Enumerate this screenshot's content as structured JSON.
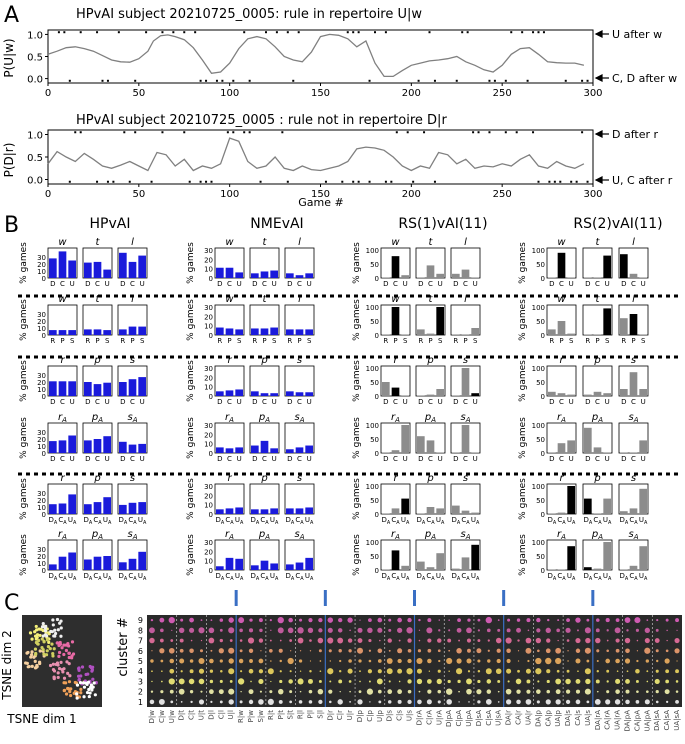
{
  "panel_labels": [
    "A",
    "B",
    "C"
  ],
  "colors": {
    "hp_bar": "#1a1adb",
    "rs_gray": "#8c8c8c",
    "rs_black": "#000000",
    "line": "#808080",
    "tsne_bg": "#2e2e2e",
    "grid_bg": "#2a2a2a",
    "blue_marker": "#3a6fc4"
  },
  "panelA": {
    "top": {
      "title": "HPvAI subject 20210725_0005:  rule in repertoire  U|w",
      "ylabel": "P(U|w)",
      "right_top": "U after w",
      "right_bottom": "C, D after w",
      "yticks": [
        "0.0",
        "0.5",
        "1.0"
      ]
    },
    "bottom": {
      "title": "HPvAI subject 20210725_0005 :  rule not in repertoire  D|r",
      "ylabel": "P(D|r)",
      "right_top": "D after r",
      "right_bottom": "U, C after r",
      "yticks": [
        "0.0",
        "0.5",
        "1.0"
      ]
    },
    "xticks": [
      "0",
      "50",
      "100",
      "150",
      "200",
      "250",
      "300"
    ],
    "xlabel": "Game #"
  },
  "panelB": {
    "column_titles": [
      "HPvAI",
      "NMEvAI",
      "RS(1)vAI(11)",
      "RS(2)vAI(11)"
    ],
    "ylabel": "% games",
    "cond_sets": [
      [
        "w",
        "t",
        "l"
      ],
      [
        "w",
        "t",
        "l"
      ],
      [
        "r",
        "p",
        "s"
      ],
      [
        "rA",
        "pA",
        "sA"
      ],
      [
        "r",
        "p",
        "s"
      ],
      [
        "rA",
        "pA",
        "sA"
      ]
    ],
    "xcat_sets": [
      [
        "D",
        "C",
        "U"
      ],
      [
        "R",
        "P",
        "S"
      ],
      [
        "D",
        "C",
        "U"
      ],
      [
        "D",
        "C",
        "U"
      ],
      [
        "DA",
        "CA",
        "UA"
      ],
      [
        "DA",
        "CA",
        "UA"
      ]
    ],
    "yticks_hp": [
      "0",
      "10",
      "20",
      "30"
    ],
    "yticks_rs": [
      "0",
      "50",
      "100"
    ]
  },
  "panelC": {
    "tsne_xlabel": "TSNE dim 1",
    "tsne_ylabel": "TSNE dim 2",
    "cluster_ylabel": "cluster #",
    "cluster_ticks": [
      "1",
      "2",
      "3",
      "4",
      "5",
      "6",
      "7",
      "8",
      "9"
    ],
    "feature_labels": [
      "D|w",
      "C|w",
      "U|w",
      "D|t",
      "C|t",
      "U|t",
      "D|l",
      "C|l",
      "U|l",
      "R|w",
      "P|w",
      "S|w",
      "R|t",
      "P|t",
      "S|t",
      "R|l",
      "P|l",
      "S|l",
      "D|r",
      "C|r",
      "U|r",
      "D|p",
      "C|p",
      "U|p",
      "D|s",
      "C|s",
      "U|s",
      "D|rA",
      "C|rA",
      "U|rA",
      "D|pA",
      "C|pA",
      "U|pA",
      "D|sA",
      "C|sA",
      "U|sA",
      "DA|r",
      "CA|r",
      "UA|r",
      "DA|p",
      "CA|p",
      "UA|p",
      "DA|s",
      "CA|s",
      "UA|s",
      "DA|rA",
      "CA|rA",
      "UA|rA",
      "DA|pA",
      "CA|pA",
      "UA|pA",
      "DA|sA",
      "CA|sA",
      "UA|sA"
    ]
  },
  "chart_data": [
    {
      "type": "line",
      "title": "HPvAI subject 20210725_0005:  rule in repertoire  U|w",
      "xlabel": "",
      "ylabel": "P(U|w)",
      "xlim": [
        0,
        300
      ],
      "ylim": [
        -0.1,
        1.1
      ],
      "x": [
        0,
        5,
        10,
        15,
        20,
        25,
        30,
        35,
        40,
        45,
        50,
        55,
        58,
        62,
        66,
        70,
        75,
        80,
        85,
        90,
        95,
        100,
        105,
        110,
        115,
        120,
        125,
        130,
        135,
        140,
        145,
        150,
        155,
        160,
        165,
        170,
        175,
        180,
        185,
        190,
        195,
        200,
        205,
        210,
        215,
        220,
        225,
        230,
        235,
        240,
        245,
        250,
        255,
        260,
        265,
        270,
        275,
        280,
        285,
        290,
        295
      ],
      "series": [
        {
          "values": [
            0.55,
            0.62,
            0.7,
            0.72,
            0.68,
            0.62,
            0.52,
            0.42,
            0.38,
            0.37,
            0.45,
            0.62,
            0.85,
            0.97,
            0.99,
            0.95,
            0.88,
            0.7,
            0.42,
            0.12,
            0.15,
            0.35,
            0.68,
            0.9,
            0.95,
            0.9,
            0.72,
            0.5,
            0.42,
            0.38,
            0.6,
            0.95,
            1.0,
            0.98,
            0.9,
            0.72,
            0.85,
            0.35,
            0.05,
            0.05,
            0.18,
            0.3,
            0.35,
            0.4,
            0.42,
            0.45,
            0.5,
            0.38,
            0.3,
            0.2,
            0.15,
            0.3,
            0.55,
            0.68,
            0.7,
            0.55,
            0.38,
            0.36,
            0.35,
            0.35,
            0.3
          ]
        }
      ]
    },
    {
      "type": "line",
      "title": "HPvAI subject 20210725_0005 :  rule not in repertoire  D|r",
      "xlabel": "Game #",
      "ylabel": "P(D|r)",
      "xlim": [
        0,
        300
      ],
      "ylim": [
        -0.1,
        1.1
      ],
      "x": [
        0,
        5,
        10,
        15,
        20,
        25,
        30,
        35,
        40,
        45,
        50,
        55,
        60,
        65,
        70,
        75,
        80,
        85,
        90,
        95,
        100,
        105,
        110,
        115,
        120,
        125,
        130,
        135,
        140,
        145,
        150,
        155,
        160,
        165,
        170,
        175,
        180,
        185,
        190,
        195,
        200,
        205,
        210,
        215,
        220,
        225,
        230,
        235,
        240,
        245,
        250,
        255,
        260,
        265,
        270,
        275,
        280,
        285,
        290,
        295
      ],
      "series": [
        {
          "values": [
            0.35,
            0.62,
            0.5,
            0.4,
            0.58,
            0.45,
            0.3,
            0.25,
            0.32,
            0.4,
            0.3,
            0.2,
            0.6,
            0.55,
            0.3,
            0.45,
            0.2,
            0.3,
            0.25,
            0.35,
            0.92,
            0.85,
            0.4,
            0.25,
            0.3,
            0.5,
            0.25,
            0.2,
            0.3,
            0.22,
            0.2,
            0.25,
            0.3,
            0.4,
            0.68,
            0.72,
            0.7,
            0.65,
            0.5,
            0.3,
            0.2,
            0.3,
            0.25,
            0.6,
            0.55,
            0.35,
            0.45,
            0.25,
            0.3,
            0.28,
            0.35,
            0.3,
            0.45,
            0.55,
            0.3,
            0.25,
            0.4,
            0.3,
            0.25,
            0.35
          ]
        }
      ]
    },
    {
      "type": "bar",
      "group": "HPvAI",
      "ylabel": "% games",
      "ylim": [
        0,
        40
      ],
      "panels": [
        [
          [
            28,
            38,
            25
          ],
          [
            22,
            23,
            12
          ],
          [
            36,
            23,
            32
          ]
        ],
        [
          [
            7,
            7,
            7
          ],
          [
            8,
            8,
            7
          ],
          [
            8,
            12,
            12
          ]
        ],
        [
          [
            21,
            21,
            21
          ],
          [
            20,
            17,
            19
          ],
          [
            20,
            24,
            27
          ]
        ],
        [
          [
            17,
            18,
            25
          ],
          [
            18,
            20,
            24
          ],
          [
            16,
            12,
            13
          ]
        ],
        [
          [
            14,
            15,
            28
          ],
          [
            14,
            17,
            24
          ],
          [
            13,
            16,
            17
          ]
        ],
        [
          [
            8,
            19,
            25
          ],
          [
            15,
            19,
            20
          ],
          [
            11,
            16,
            26
          ]
        ]
      ]
    },
    {
      "type": "bar",
      "group": "NMEvAI",
      "ylabel": "% games",
      "ylim": [
        0,
        30
      ],
      "panels": [
        [
          [
            11,
            11,
            6
          ],
          [
            5,
            7,
            8
          ],
          [
            5,
            3,
            5
          ]
        ],
        [
          [
            8,
            7,
            6
          ],
          [
            7,
            7,
            8
          ],
          [
            6,
            6,
            6
          ]
        ],
        [
          [
            5,
            6,
            7
          ],
          [
            5,
            3,
            3
          ],
          [
            5,
            4,
            4
          ]
        ],
        [
          [
            6,
            5,
            6
          ],
          [
            8,
            13,
            5
          ],
          [
            4,
            6,
            8
          ]
        ],
        [
          [
            5,
            6,
            7
          ],
          [
            5,
            5,
            6
          ],
          [
            6,
            6,
            7
          ]
        ],
        [
          [
            4,
            13,
            12
          ],
          [
            5,
            10,
            7
          ],
          [
            6,
            8,
            13
          ]
        ]
      ]
    },
    {
      "type": "bar",
      "group": "RS(1)vAI(11)",
      "ylabel": "% games",
      "ylim": [
        0,
        100
      ],
      "panels": [
        [
          [
            2,
            78,
            10
          ],
          [
            2,
            45,
            15
          ],
          [
            15,
            30,
            2
          ]
        ],
        [
          [
            2,
            100,
            2
          ],
          [
            20,
            5,
            100
          ],
          [
            2,
            2,
            25
          ]
        ],
        [
          [
            50,
            30,
            2
          ],
          [
            2,
            5,
            25
          ],
          [
            2,
            100,
            10
          ]
        ],
        [
          [
            2,
            10,
            100
          ],
          [
            60,
            45,
            2
          ],
          [
            2,
            100,
            2
          ]
        ],
        [
          [
            2,
            20,
            55
          ],
          [
            2,
            25,
            20
          ],
          [
            30,
            12,
            5
          ]
        ],
        [
          [
            2,
            70,
            15
          ],
          [
            30,
            10,
            60
          ],
          [
            5,
            45,
            90
          ]
        ]
      ],
      "highlight": [
        [
          [
            false,
            true,
            false
          ],
          [
            false,
            false,
            false
          ],
          [
            false,
            false,
            false
          ]
        ],
        [
          [
            false,
            true,
            false
          ],
          [
            false,
            false,
            true
          ],
          [
            false,
            false,
            false
          ]
        ],
        [
          [
            false,
            true,
            false
          ],
          [
            false,
            false,
            false
          ],
          [
            false,
            false,
            true
          ]
        ],
        [
          [
            false,
            false,
            false
          ],
          [
            false,
            false,
            false
          ],
          [
            false,
            false,
            false
          ]
        ],
        [
          [
            false,
            false,
            true
          ],
          [
            false,
            false,
            false
          ],
          [
            false,
            false,
            false
          ]
        ],
        [
          [
            false,
            true,
            false
          ],
          [
            false,
            false,
            false
          ],
          [
            false,
            false,
            true
          ]
        ]
      ]
    },
    {
      "type": "bar",
      "group": "RS(2)vAI(11)",
      "ylabel": "% games",
      "ylim": [
        0,
        100
      ],
      "panels": [
        [
          [
            2,
            90,
            2
          ],
          [
            2,
            2,
            80
          ],
          [
            85,
            15,
            2
          ]
        ],
        [
          [
            20,
            50,
            5
          ],
          [
            2,
            2,
            95
          ],
          [
            60,
            75,
            2
          ]
        ],
        [
          [
            15,
            10,
            5
          ],
          [
            5,
            15,
            10
          ],
          [
            25,
            85,
            25
          ]
        ],
        [
          [
            2,
            35,
            45
          ],
          [
            90,
            20,
            2
          ],
          [
            2,
            2,
            45
          ]
        ],
        [
          [
            2,
            5,
            100
          ],
          [
            55,
            2,
            55
          ],
          [
            10,
            20,
            90
          ]
        ],
        [
          [
            2,
            2,
            85
          ],
          [
            10,
            5,
            100
          ],
          [
            2,
            15,
            85
          ]
        ]
      ],
      "highlight": [
        [
          [
            false,
            true,
            false
          ],
          [
            false,
            false,
            true
          ],
          [
            true,
            false,
            false
          ]
        ],
        [
          [
            false,
            false,
            false
          ],
          [
            false,
            false,
            true
          ],
          [
            false,
            true,
            false
          ]
        ],
        [
          [
            false,
            false,
            false
          ],
          [
            false,
            false,
            false
          ],
          [
            false,
            false,
            false
          ]
        ],
        [
          [
            false,
            false,
            false
          ],
          [
            false,
            false,
            false
          ],
          [
            false,
            false,
            false
          ]
        ],
        [
          [
            false,
            false,
            true
          ],
          [
            true,
            false,
            false
          ],
          [
            false,
            false,
            false
          ]
        ],
        [
          [
            false,
            false,
            true
          ],
          [
            true,
            false,
            false
          ],
          [
            false,
            false,
            false
          ]
        ]
      ]
    }
  ]
}
